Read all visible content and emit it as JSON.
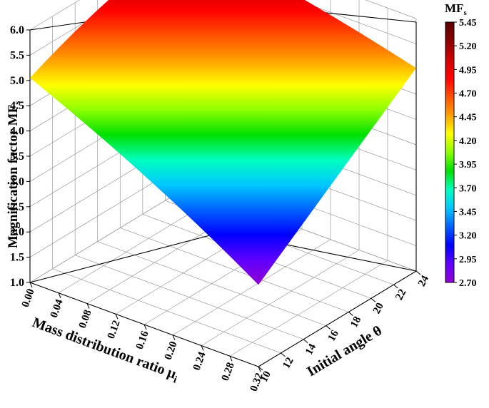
{
  "chart_data": {
    "type": "surface3d",
    "zlabel": "Magnification factor MF",
    "zlabel_sub": "s",
    "xlabel": "Mass distribution ratio μ",
    "xlabel_sub": "i",
    "ylabel": "Initial angle θ",
    "z_ticks": [
      "1.0",
      "1.5",
      "2.0",
      "2.5",
      "3.0",
      "3.5",
      "4.0",
      "4.5",
      "5.0",
      "5.5",
      "6.0"
    ],
    "x_ticks": [
      "0.00",
      "0.04",
      "0.08",
      "0.12",
      "0.16",
      "0.20",
      "0.24",
      "0.28",
      "0.32"
    ],
    "y_ticks": [
      "10",
      "12",
      "14",
      "16",
      "18",
      "20",
      "22",
      "24"
    ],
    "zlim": [
      1.0,
      6.0
    ],
    "xlim": [
      0.0,
      0.32
    ],
    "ylim": [
      10,
      24
    ],
    "surface_corners": [
      {
        "mu": 0.0,
        "theta": 10,
        "mf": 5.05
      },
      {
        "mu": 0.0,
        "theta": 24,
        "mf": 5.98
      },
      {
        "mu": 0.32,
        "theta": 24,
        "mf": 5.02
      },
      {
        "mu": 0.32,
        "theta": 10,
        "mf": 2.62
      }
    ],
    "colorbar": {
      "title": "MF",
      "title_sub": "s",
      "ticks": [
        "5.45",
        "5.20",
        "4.95",
        "4.70",
        "4.45",
        "4.20",
        "3.95",
        "3.70",
        "3.45",
        "3.20",
        "2.95",
        "2.70"
      ],
      "range": [
        2.7,
        5.45
      ],
      "colors": [
        "#5a0000",
        "#8b0000",
        "#d00000",
        "#ff0000",
        "#ff5000",
        "#ffa000",
        "#ffff00",
        "#8cff00",
        "#00e000",
        "#00ffc0",
        "#00c8ff",
        "#0060ff",
        "#0000ff",
        "#6000ff",
        "#9000d0"
      ]
    }
  }
}
